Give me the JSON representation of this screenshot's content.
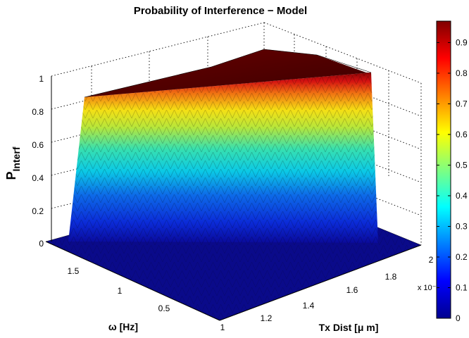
{
  "title": "Probability of Interference − Model",
  "chart_data": {
    "type": "surface3d",
    "title": "Probability of Interference − Model",
    "x_axis": {
      "label": "Tx Dist [μ m]",
      "ticks": [
        "1",
        "1.2",
        "1.4",
        "1.6",
        "1.8",
        "2"
      ],
      "exponent": "x 10⁻³",
      "range": [
        0.001,
        0.002
      ]
    },
    "y_axis": {
      "label": "ω [Hz]",
      "ticks": [
        "0.5",
        "1",
        "1.5"
      ],
      "range": [
        0.0,
        1.8
      ]
    },
    "z_axis": {
      "label_main": "P",
      "label_sub": "Interf",
      "ticks": [
        "0",
        "0.2",
        "0.4",
        "0.6",
        "0.8",
        "1"
      ],
      "range": [
        0,
        1
      ]
    },
    "colorbar": {
      "ticks": [
        "0",
        "0.1",
        "0.2",
        "0.3",
        "0.4",
        "0.5",
        "0.6",
        "0.7",
        "0.8",
        "0.9"
      ],
      "range": [
        0,
        0.97
      ],
      "colormap": "jet"
    },
    "surface": {
      "description_values": "P rises steeply from 0 near omega=0 to ~0.88 at omega_max; oscillates in omega (striped facets); constant in Tx Dist",
      "z_min": 0,
      "z_max": 0.97
    }
  }
}
